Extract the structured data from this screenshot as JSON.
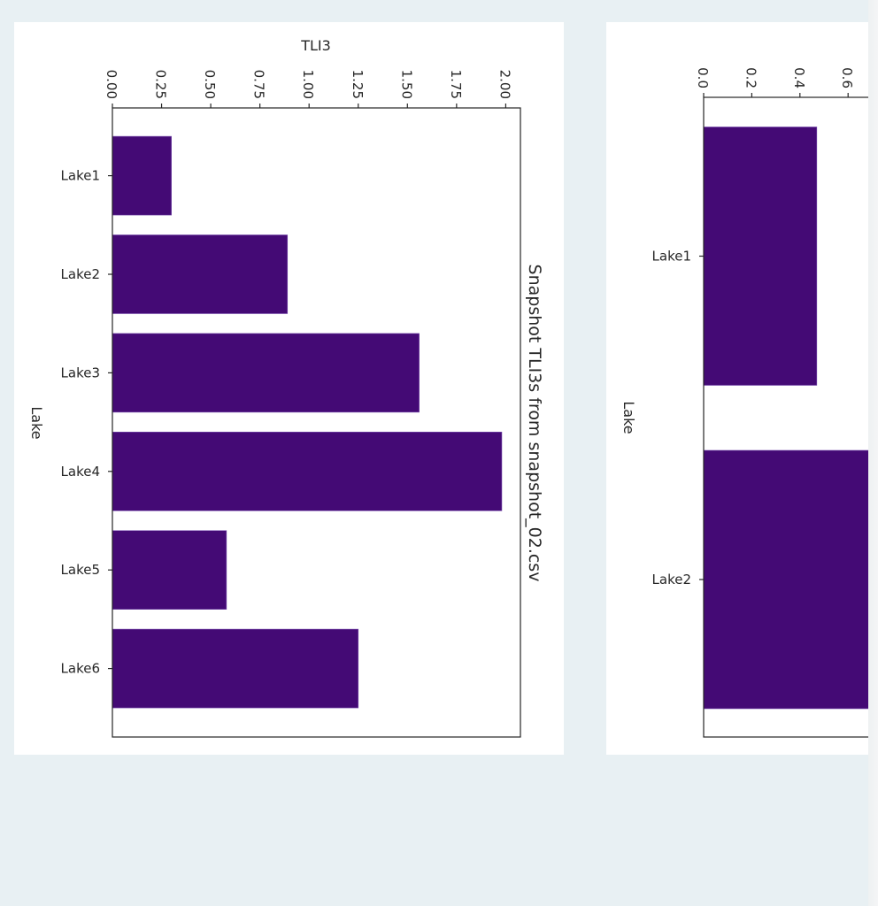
{
  "colors": {
    "page_background": "#e8f0f3",
    "card_background": "#ffffff",
    "bar_fill": "#440a75",
    "axis_color": "#262626"
  },
  "chart_data": [
    {
      "type": "bar",
      "orientation": "horizontal (figure rotated 90° clockwise)",
      "title": "Snapshot TLI3s from snapshot_02.csv",
      "xlabel": "TLI3",
      "ylabel": "Lake",
      "categories": [
        "Lake1",
        "Lake2",
        "Lake3",
        "Lake4",
        "Lake5",
        "Lake6"
      ],
      "values": [
        0.3,
        0.89,
        1.56,
        1.98,
        0.58,
        1.25
      ],
      "xlim": [
        0,
        2.08
      ],
      "xticks": [
        "0.00",
        "0.25",
        "0.50",
        "0.75",
        "1.00",
        "1.25",
        "1.50",
        "1.75",
        "2.00"
      ],
      "grid": false,
      "legend": null
    },
    {
      "type": "bar",
      "orientation": "horizontal (figure rotated 90° clockwise, partially clipped)",
      "title": "",
      "xlabel": "",
      "ylabel": "Lake",
      "categories": [
        "Lake1",
        "Lake2"
      ],
      "values": [
        0.47,
        null
      ],
      "note": "Lake2 bar extends beyond the visible (clipped) area; value > 0.68",
      "xticks_visible": [
        "0.0",
        "0.2",
        "0.4",
        "0.6"
      ],
      "grid": false,
      "legend": null
    }
  ],
  "chart1": {
    "title": "Snapshot TLI3s from snapshot_02.csv",
    "xlabel": "TLI3",
    "ylabel": "Lake",
    "ticks": [
      "0.00",
      "0.25",
      "0.50",
      "0.75",
      "1.00",
      "1.25",
      "1.50",
      "1.75",
      "2.00"
    ],
    "lakes": [
      "Lake1",
      "Lake2",
      "Lake3",
      "Lake4",
      "Lake5",
      "Lake6"
    ]
  },
  "chart2": {
    "ylabel": "Lake",
    "ticks": [
      "0.0",
      "0.2",
      "0.4",
      "0.6"
    ],
    "lakes": [
      "Lake1",
      "Lake2"
    ]
  }
}
